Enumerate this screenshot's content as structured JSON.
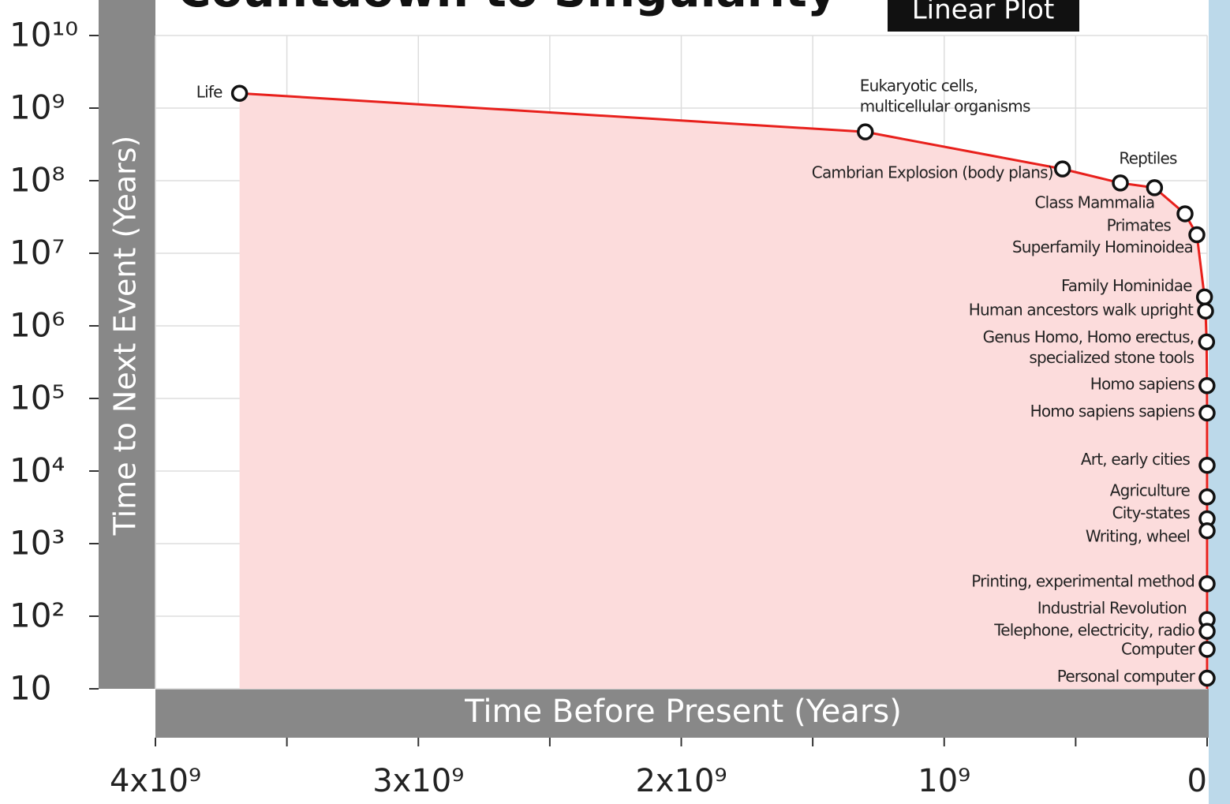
{
  "chart_data": {
    "type": "line",
    "title": "Countdown to Singularity",
    "badge": "Linear Plot",
    "x_label": "Time Before Present (Years)",
    "y_label": "Time to Next Event (Years)",
    "log_y": true,
    "grid": true,
    "line_color": "#e8201c",
    "area_color": "#fcdcdc",
    "xlim": [
      4000000000,
      0
    ],
    "ylim": [
      10,
      10000000000
    ],
    "xticks": [
      {
        "value": 4000000000,
        "label": "4x10⁹"
      },
      {
        "value": 3000000000,
        "label": "3x10⁹"
      },
      {
        "value": 2000000000,
        "label": "2x10⁹"
      },
      {
        "value": 1000000000,
        "label": "10⁹"
      },
      0
    ],
    "xminor": [
      3500000000,
      2500000000,
      1500000000,
      500000000
    ],
    "yticks": [
      10,
      {
        "value": 100,
        "label": "10²"
      },
      {
        "value": 1000,
        "label": "10³"
      },
      {
        "value": 10000,
        "label": "10⁴"
      },
      {
        "value": 100000,
        "label": "10⁵"
      },
      {
        "value": 1000000,
        "label": "10⁶"
      },
      {
        "value": 10000000,
        "label": "10⁷"
      },
      {
        "value": 100000000,
        "label": "10⁸"
      },
      {
        "value": 1000000000,
        "label": "10⁹"
      },
      {
        "value": 10000000000,
        "label": "10¹⁰"
      }
    ],
    "x": [
      3680000000,
      1300000000,
      550000000,
      330000000,
      200000000,
      84000000,
      39000000,
      10000000,
      6000000,
      2000000,
      500000,
      100000,
      40000,
      10000,
      5000,
      3500,
      500,
      200,
      120,
      60,
      25
    ],
    "values": [
      1600000000,
      470000000,
      145000000,
      93000000,
      80000000,
      35000000,
      18000000,
      2500000,
      1600000,
      600000,
      150000,
      63000,
      12000,
      4400,
      2200,
      1500,
      280,
      90,
      62,
      35,
      14
    ],
    "point_labels": [
      [
        "Life"
      ],
      [
        "Eukaryotic cells,",
        "multicellular organisms"
      ],
      [
        "Cambrian Explosion (body plans)"
      ],
      [
        "Reptiles"
      ],
      [
        "Class Mammalia"
      ],
      [
        "Primates"
      ],
      [
        "Superfamily Hominoidea"
      ],
      [
        "Family Hominidae"
      ],
      [
        "Human ancestors walk upright"
      ],
      [
        "Genus Homo, Homo erectus,",
        "specialized stone tools"
      ],
      [
        "Homo sapiens"
      ],
      [
        "Homo sapiens sapiens"
      ],
      [
        "Art, early cities"
      ],
      [
        "Agriculture"
      ],
      [
        "City-states"
      ],
      [
        "Writing, wheel"
      ],
      [
        "Printing, experimental method"
      ],
      [
        "Industrial Revolution"
      ],
      [
        "Telephone,  electricity, radio"
      ],
      [
        "Computer"
      ],
      [
        "Personal computer"
      ]
    ]
  }
}
